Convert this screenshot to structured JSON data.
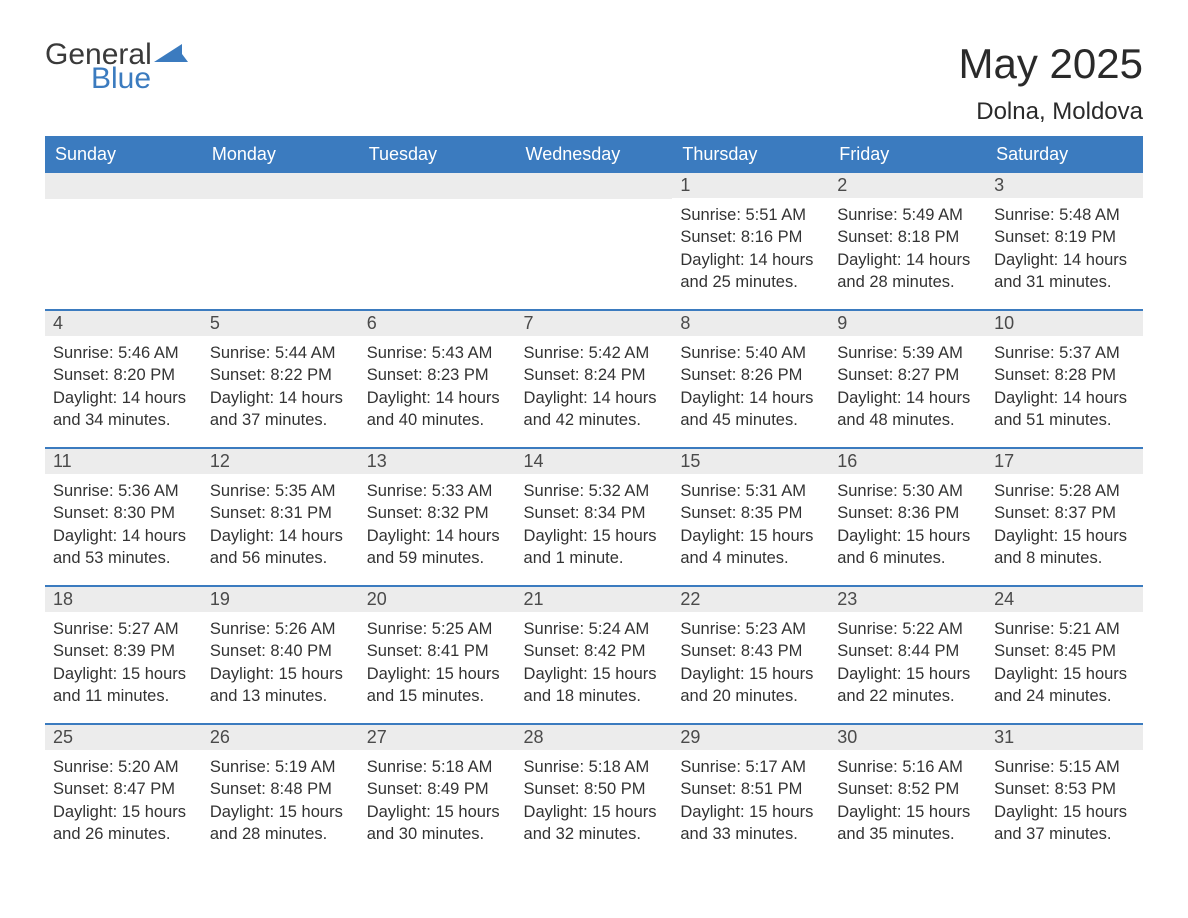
{
  "logo": {
    "word1": "General",
    "word2": "Blue",
    "triangle_color": "#3b7bbf"
  },
  "title": "May 2025",
  "location": "Dolna, Moldova",
  "colors": {
    "header_bg": "#3b7bbf",
    "header_text": "#ffffff",
    "daynum_bg": "#ececec",
    "daynum_text": "#4a4a4a",
    "body_text": "#333333",
    "row_divider": "#3b7bbf",
    "page_bg": "#ffffff"
  },
  "typography": {
    "title_fontsize": 42,
    "location_fontsize": 24,
    "weekday_fontsize": 18,
    "daynum_fontsize": 18,
    "body_fontsize": 16.5,
    "font_family": "Arial"
  },
  "layout": {
    "columns": 7,
    "rows": 5,
    "first_day_column_index": 4
  },
  "weekdays": [
    "Sunday",
    "Monday",
    "Tuesday",
    "Wednesday",
    "Thursday",
    "Friday",
    "Saturday"
  ],
  "days": [
    {
      "n": "1",
      "sunrise": "5:51 AM",
      "sunset": "8:16 PM",
      "daylight": "14 hours and 25 minutes."
    },
    {
      "n": "2",
      "sunrise": "5:49 AM",
      "sunset": "8:18 PM",
      "daylight": "14 hours and 28 minutes."
    },
    {
      "n": "3",
      "sunrise": "5:48 AM",
      "sunset": "8:19 PM",
      "daylight": "14 hours and 31 minutes."
    },
    {
      "n": "4",
      "sunrise": "5:46 AM",
      "sunset": "8:20 PM",
      "daylight": "14 hours and 34 minutes."
    },
    {
      "n": "5",
      "sunrise": "5:44 AM",
      "sunset": "8:22 PM",
      "daylight": "14 hours and 37 minutes."
    },
    {
      "n": "6",
      "sunrise": "5:43 AM",
      "sunset": "8:23 PM",
      "daylight": "14 hours and 40 minutes."
    },
    {
      "n": "7",
      "sunrise": "5:42 AM",
      "sunset": "8:24 PM",
      "daylight": "14 hours and 42 minutes."
    },
    {
      "n": "8",
      "sunrise": "5:40 AM",
      "sunset": "8:26 PM",
      "daylight": "14 hours and 45 minutes."
    },
    {
      "n": "9",
      "sunrise": "5:39 AM",
      "sunset": "8:27 PM",
      "daylight": "14 hours and 48 minutes."
    },
    {
      "n": "10",
      "sunrise": "5:37 AM",
      "sunset": "8:28 PM",
      "daylight": "14 hours and 51 minutes."
    },
    {
      "n": "11",
      "sunrise": "5:36 AM",
      "sunset": "8:30 PM",
      "daylight": "14 hours and 53 minutes."
    },
    {
      "n": "12",
      "sunrise": "5:35 AM",
      "sunset": "8:31 PM",
      "daylight": "14 hours and 56 minutes."
    },
    {
      "n": "13",
      "sunrise": "5:33 AM",
      "sunset": "8:32 PM",
      "daylight": "14 hours and 59 minutes."
    },
    {
      "n": "14",
      "sunrise": "5:32 AM",
      "sunset": "8:34 PM",
      "daylight": "15 hours and 1 minute."
    },
    {
      "n": "15",
      "sunrise": "5:31 AM",
      "sunset": "8:35 PM",
      "daylight": "15 hours and 4 minutes."
    },
    {
      "n": "16",
      "sunrise": "5:30 AM",
      "sunset": "8:36 PM",
      "daylight": "15 hours and 6 minutes."
    },
    {
      "n": "17",
      "sunrise": "5:28 AM",
      "sunset": "8:37 PM",
      "daylight": "15 hours and 8 minutes."
    },
    {
      "n": "18",
      "sunrise": "5:27 AM",
      "sunset": "8:39 PM",
      "daylight": "15 hours and 11 minutes."
    },
    {
      "n": "19",
      "sunrise": "5:26 AM",
      "sunset": "8:40 PM",
      "daylight": "15 hours and 13 minutes."
    },
    {
      "n": "20",
      "sunrise": "5:25 AM",
      "sunset": "8:41 PM",
      "daylight": "15 hours and 15 minutes."
    },
    {
      "n": "21",
      "sunrise": "5:24 AM",
      "sunset": "8:42 PM",
      "daylight": "15 hours and 18 minutes."
    },
    {
      "n": "22",
      "sunrise": "5:23 AM",
      "sunset": "8:43 PM",
      "daylight": "15 hours and 20 minutes."
    },
    {
      "n": "23",
      "sunrise": "5:22 AM",
      "sunset": "8:44 PM",
      "daylight": "15 hours and 22 minutes."
    },
    {
      "n": "24",
      "sunrise": "5:21 AM",
      "sunset": "8:45 PM",
      "daylight": "15 hours and 24 minutes."
    },
    {
      "n": "25",
      "sunrise": "5:20 AM",
      "sunset": "8:47 PM",
      "daylight": "15 hours and 26 minutes."
    },
    {
      "n": "26",
      "sunrise": "5:19 AM",
      "sunset": "8:48 PM",
      "daylight": "15 hours and 28 minutes."
    },
    {
      "n": "27",
      "sunrise": "5:18 AM",
      "sunset": "8:49 PM",
      "daylight": "15 hours and 30 minutes."
    },
    {
      "n": "28",
      "sunrise": "5:18 AM",
      "sunset": "8:50 PM",
      "daylight": "15 hours and 32 minutes."
    },
    {
      "n": "29",
      "sunrise": "5:17 AM",
      "sunset": "8:51 PM",
      "daylight": "15 hours and 33 minutes."
    },
    {
      "n": "30",
      "sunrise": "5:16 AM",
      "sunset": "8:52 PM",
      "daylight": "15 hours and 35 minutes."
    },
    {
      "n": "31",
      "sunrise": "5:15 AM",
      "sunset": "8:53 PM",
      "daylight": "15 hours and 37 minutes."
    }
  ],
  "labels": {
    "sunrise": "Sunrise:",
    "sunset": "Sunset:",
    "daylight": "Daylight:"
  }
}
